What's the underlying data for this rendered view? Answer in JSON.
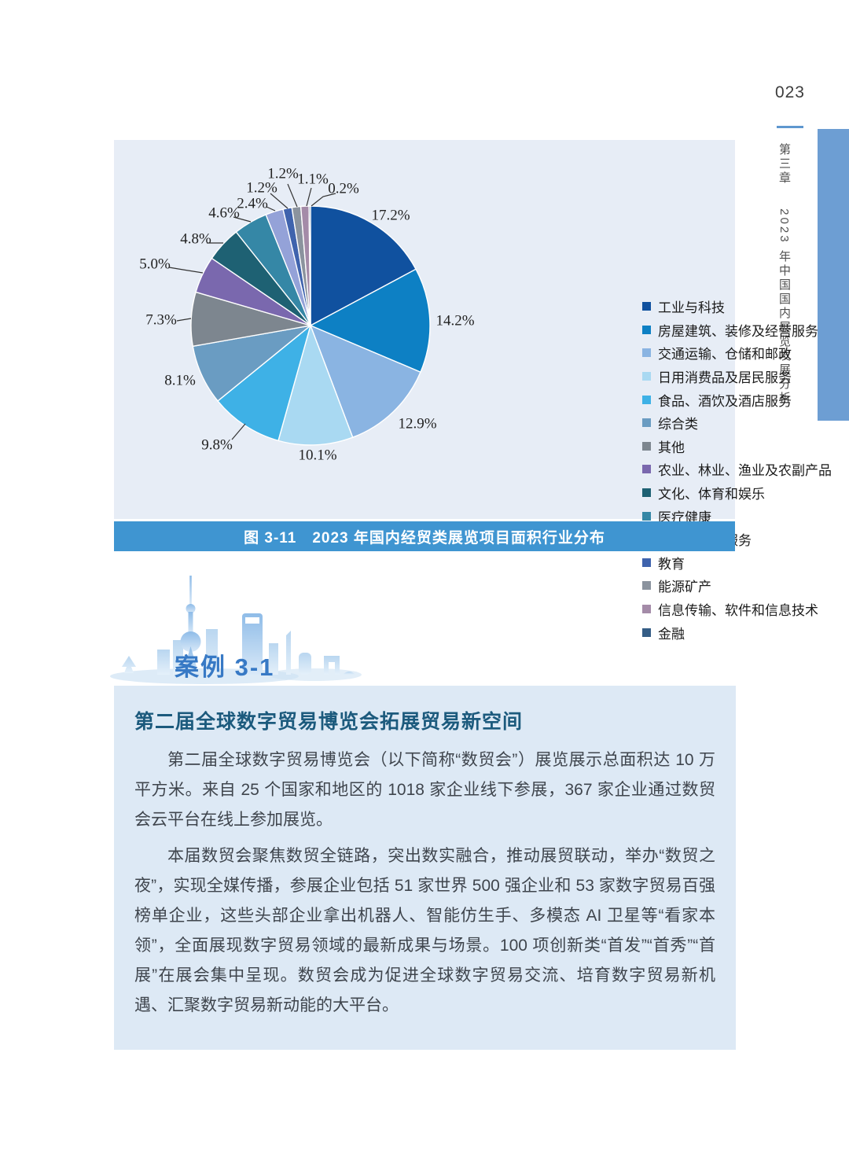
{
  "page": {
    "number": "023",
    "sidebar_chapter": "第三章",
    "sidebar_title": "2023 年中国国内展览发展分析"
  },
  "chart_data": {
    "type": "pie",
    "title": "图 3-11　2023 年国内经贸类展览项目面积行业分布",
    "unit": "%",
    "legend_position": "right",
    "slices": [
      {
        "label": "工业与科技",
        "value": 17.2,
        "color": "#10519f"
      },
      {
        "label": "房屋建筑、装修及经营服务",
        "value": 14.2,
        "color": "#0d80c4"
      },
      {
        "label": "交通运输、仓储和邮政",
        "value": 12.9,
        "color": "#8ab4e2"
      },
      {
        "label": "日用消费品及居民服务",
        "value": 10.1,
        "color": "#a9d9f2"
      },
      {
        "label": "食品、酒饮及酒店服务",
        "value": 9.8,
        "color": "#3eb1e6"
      },
      {
        "label": "综合类",
        "value": 8.1,
        "color": "#6a9cc2"
      },
      {
        "label": "其他",
        "value": 7.3,
        "color": "#7d868f"
      },
      {
        "label": "农业、林业、渔业及农副产品",
        "value": 5.0,
        "color": "#7a68ae"
      },
      {
        "label": "文化、体育和娱乐",
        "value": 4.8,
        "color": "#1e6173"
      },
      {
        "label": "医疗健康",
        "value": 4.6,
        "color": "#3587a6"
      },
      {
        "label": "租赁和商务服务",
        "value": 2.4,
        "color": "#94a2d8"
      },
      {
        "label": "教育",
        "value": 1.2,
        "color": "#3f63ad"
      },
      {
        "label": "能源矿产",
        "value": 1.2,
        "color": "#8b939e"
      },
      {
        "label": "信息传输、软件和信息技术",
        "value": 1.1,
        "color": "#a48ba8"
      },
      {
        "label": "金融",
        "value": 0.2,
        "color": "#355d86"
      }
    ]
  },
  "case_badge": {
    "label": "案例 3-1"
  },
  "case_box": {
    "title": "第二届全球数字贸易博览会拓展贸易新空间",
    "paragraphs": [
      "第二届全球数字贸易博览会（以下简称“数贸会”）展览展示总面积达 10 万平方米。来自 25 个国家和地区的 1018 家企业线下参展，367 家企业通过数贸会云平台在线上参加展览。",
      "本届数贸会聚焦数贸全链路，突出数实融合，推动展贸联动，举办“数贸之夜”，实现全媒传播，参展企业包括 51 家世界 500 强企业和 53 家数字贸易百强榜单企业，这些头部企业拿出机器人、智能仿生手、多模态 AI 卫星等“看家本领”，全面展现数字贸易领域的最新成果与场景。100 项创新类“首发”“首秀”“首展”在展会集中呈现。数贸会成为促进全球数字贸易交流、培育数字贸易新机遇、汇聚数字贸易新动能的大平台。"
    ]
  },
  "colors": {
    "accent_blue": "#3f95d1",
    "sidebar_bar": "#6d9ed3",
    "panel_bg": "#e7edf6",
    "case_box_bg": "#dde9f5",
    "case_title": "#1c5a7d",
    "badge_text": "#3779c5"
  }
}
